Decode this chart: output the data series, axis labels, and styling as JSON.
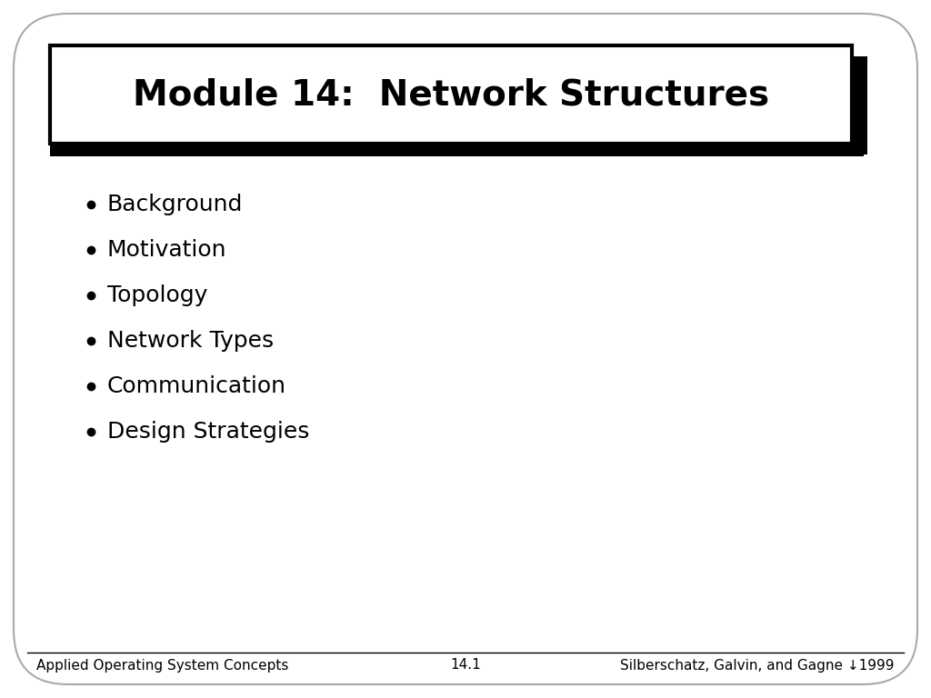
{
  "title": "Module 14:  Network Structures",
  "bullet_items": [
    "Background",
    "Motivation",
    "Topology",
    "Network Types",
    "Communication",
    "Design Strategies"
  ],
  "footer_left": "Applied Operating System Concepts",
  "footer_center": "14.1",
  "footer_right": "Silberschatz, Galvin, and Gagne ↓1999",
  "bg_color": "#ffffff",
  "outer_bg": "#ffffff",
  "slide_border_color": "#aaaaaa",
  "title_fontsize": 28,
  "bullet_fontsize": 18,
  "footer_fontsize": 11
}
